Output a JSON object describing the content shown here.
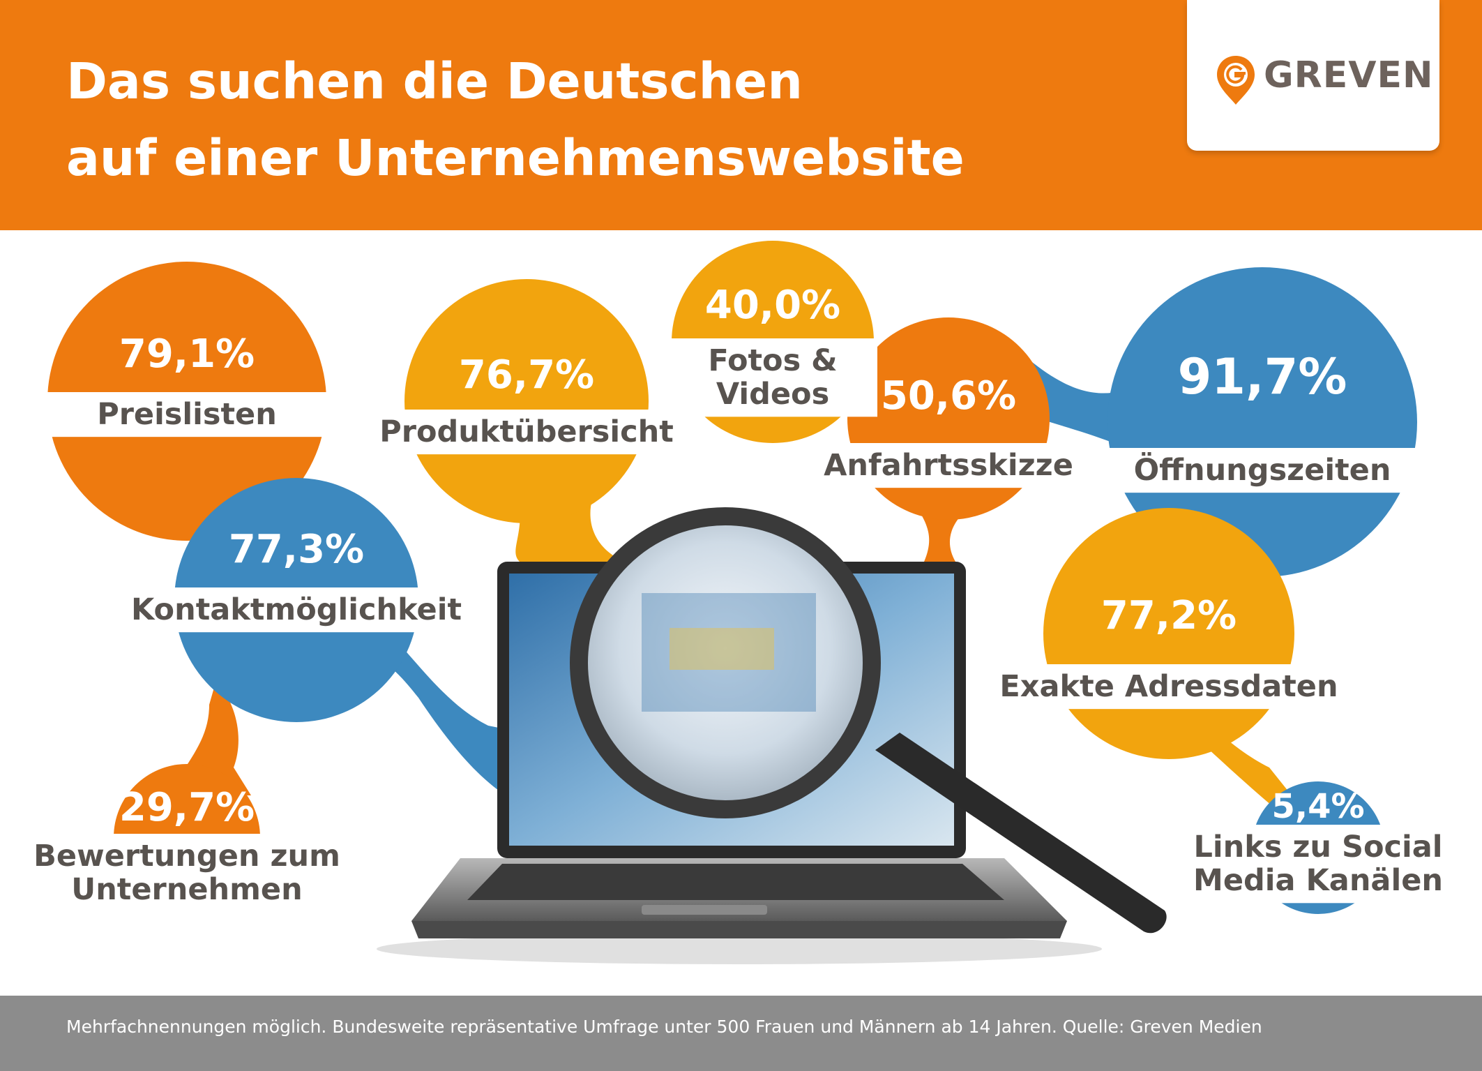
{
  "header": {
    "title_line1": "Das suchen die Deutschen",
    "title_line2": "auf einer Unternehmenswebsite",
    "logo_text": "GREVEN",
    "logo_icon": "map-pin-g-icon"
  },
  "colors": {
    "orange": "#ee7a0f",
    "yellow": "#f2a40e",
    "blue": "#3d89bf",
    "label_gray": "#58534f",
    "footer_gray": "#8c8c8c"
  },
  "chart_data": {
    "type": "bubble",
    "unit": "%",
    "categories": [
      "Öffnungszeiten",
      "Preislisten",
      "Kontaktmöglichkeit",
      "Exakte Adressdaten",
      "Produktübersicht",
      "Anfahrtsskizze",
      "Fotos & Videos",
      "Bewertungen zum Unternehmen",
      "Links zu Social Media Kanälen"
    ],
    "values": [
      91.7,
      79.1,
      77.3,
      77.2,
      76.7,
      50.6,
      40.0,
      29.7,
      5.4
    ],
    "value_labels": [
      "91,7%",
      "79,1%",
      "77,3%",
      "77,2%",
      "76,7%",
      "50,6%",
      "40,0%",
      "29,7%",
      "5,4%"
    ],
    "label_lines": [
      [
        "Öffnungszeiten"
      ],
      [
        "Preislisten"
      ],
      [
        "Kontaktmöglichkeit"
      ],
      [
        "Exakte Adressdaten"
      ],
      [
        "Produktübersicht"
      ],
      [
        "Anfahrtsskizze"
      ],
      [
        "Fotos &",
        "Videos"
      ],
      [
        "Bewertungen zum",
        "Unternehmen"
      ],
      [
        "Links zu Social",
        "Media Kanälen"
      ]
    ],
    "bubble_colors": [
      "blue",
      "orange",
      "blue",
      "yellow",
      "yellow",
      "orange",
      "yellow",
      "orange",
      "blue"
    ],
    "center_image": "laptop-with-magnifying-glass"
  },
  "footer": {
    "note": "Mehrfachnennungen möglich. Bundesweite repräsentative Umfrage unter 500 Frauen und Männern ab 14 Jahren. Quelle: Greven Medien"
  }
}
